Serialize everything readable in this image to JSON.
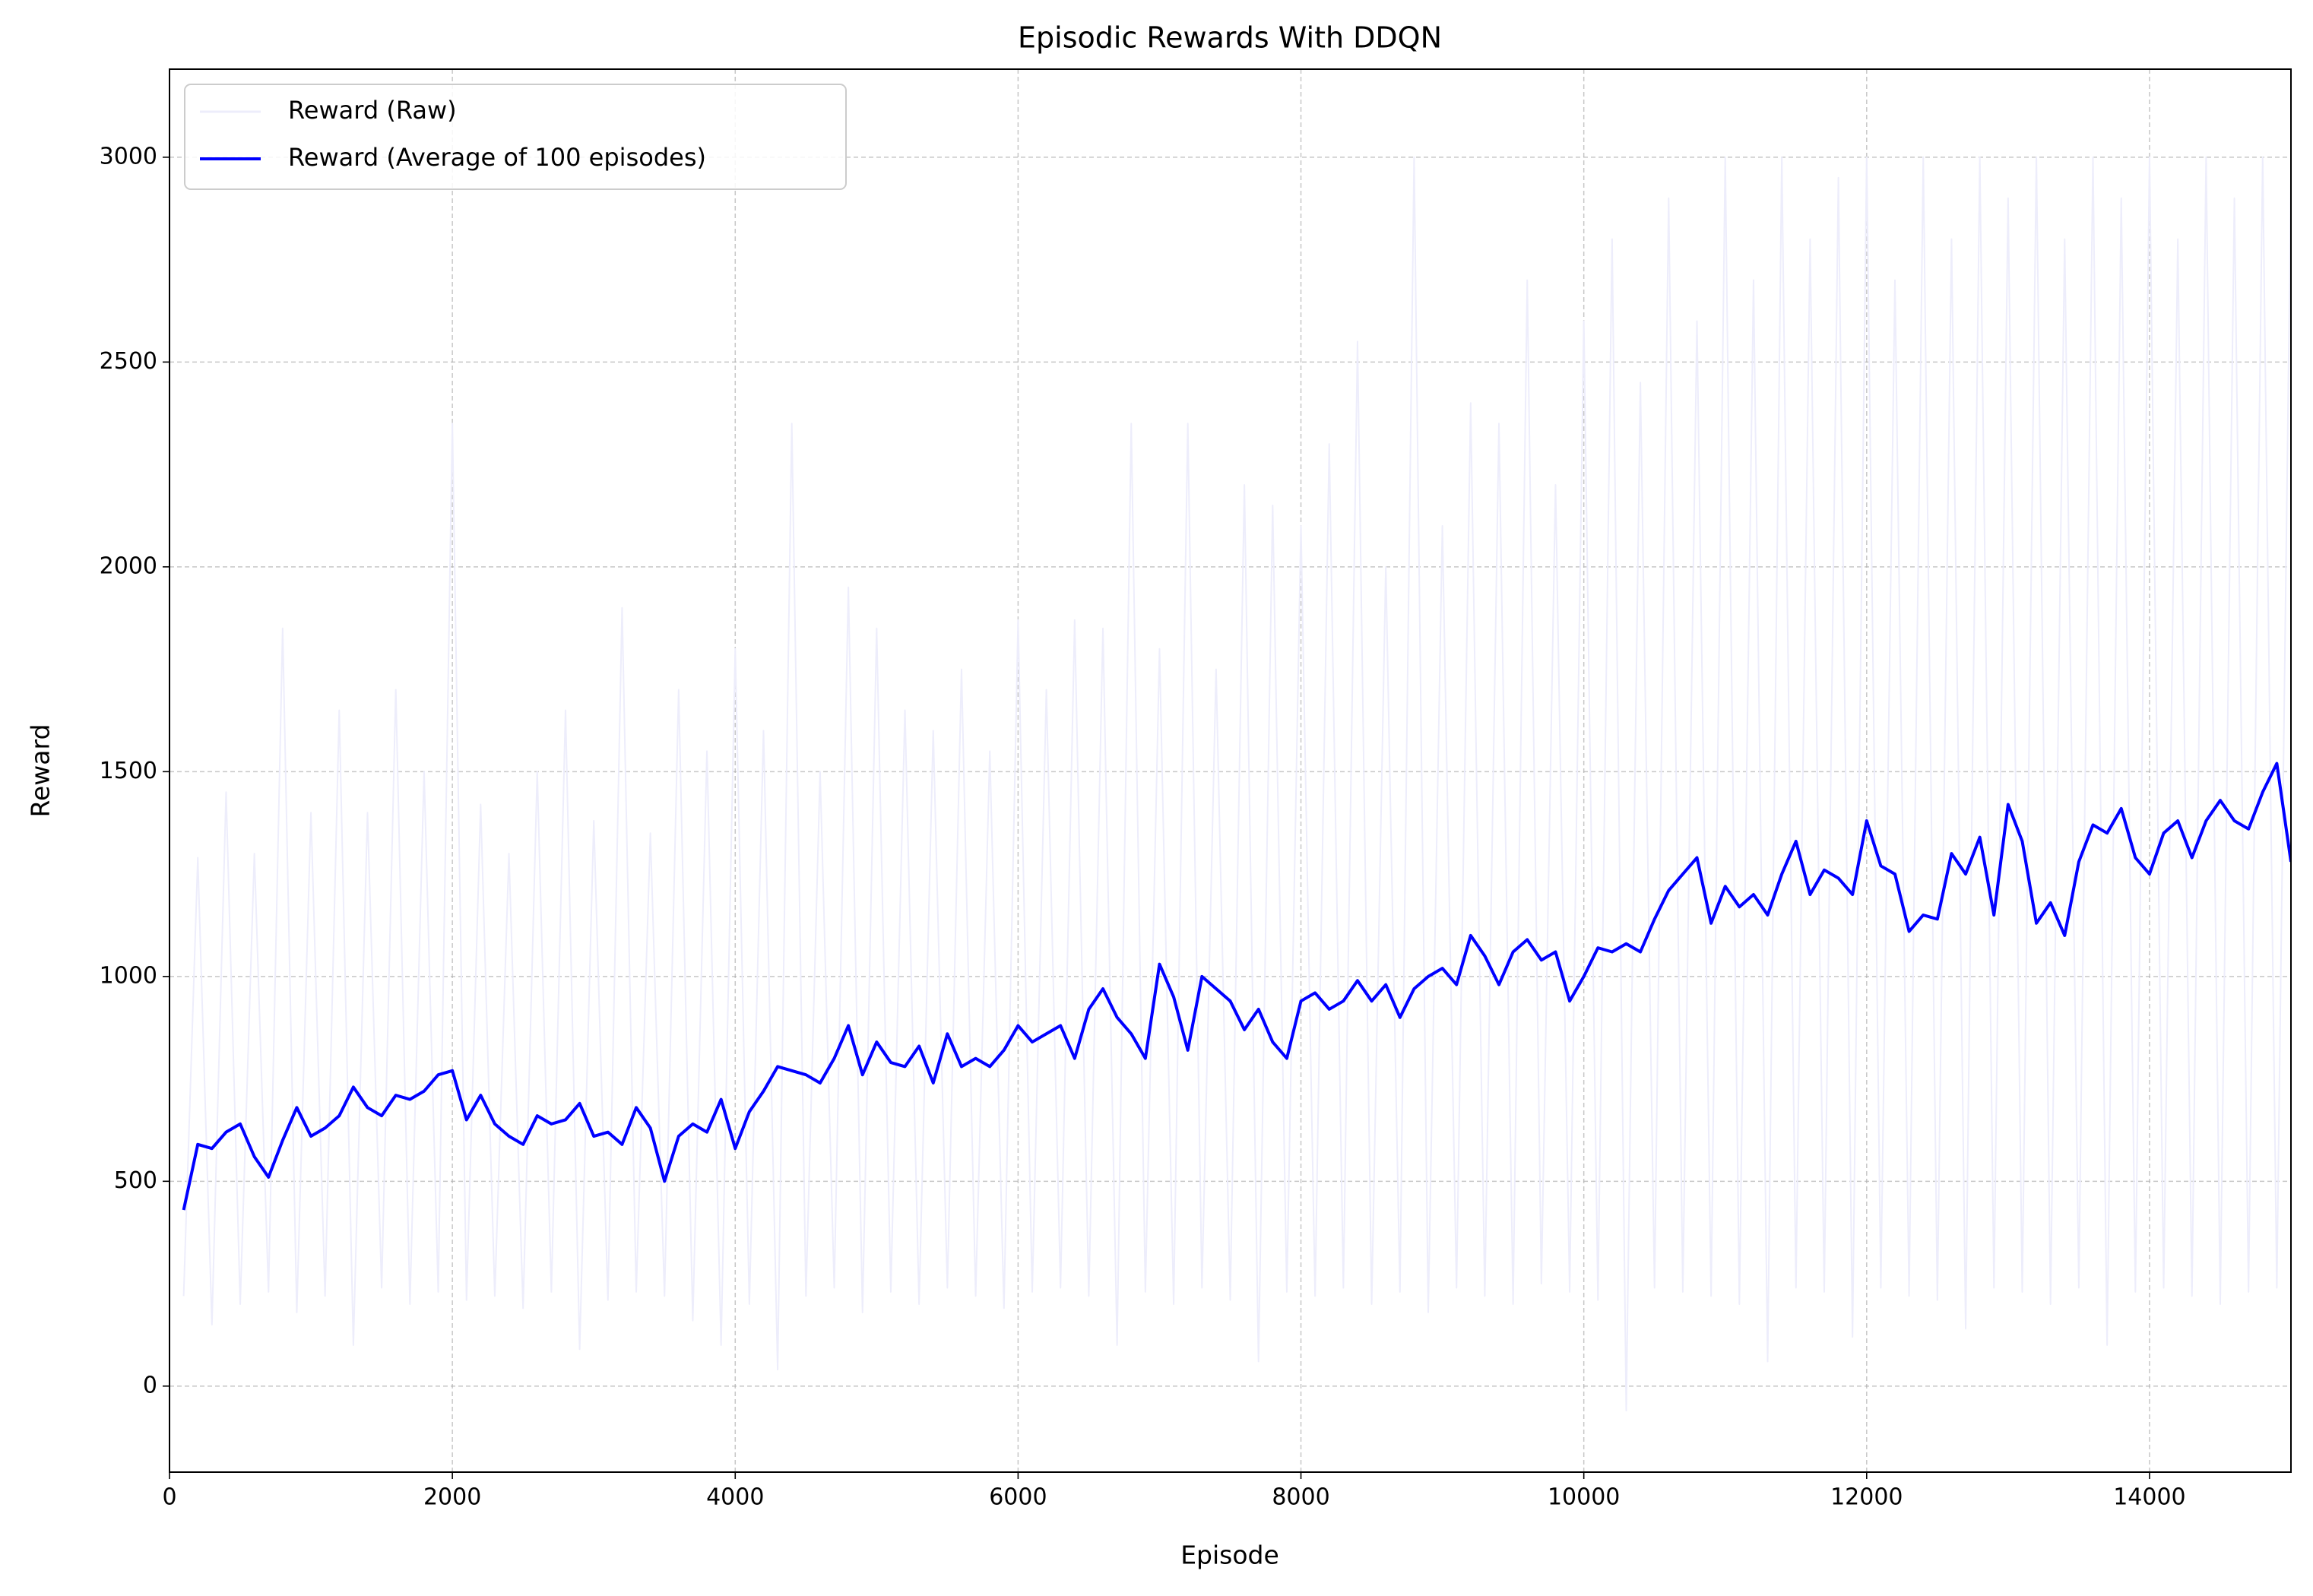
{
  "chart_data": {
    "type": "line",
    "title": "Episodic Rewards With DDQN",
    "xlabel": "Episode",
    "ylabel": "Reward",
    "xlim": [
      0,
      15000
    ],
    "ylim": [
      -210,
      3215
    ],
    "xticks": [
      0,
      2000,
      4000,
      6000,
      8000,
      10000,
      12000,
      14000
    ],
    "yticks": [
      0,
      500,
      1000,
      1500,
      2000,
      2500,
      3000
    ],
    "grid": true,
    "legend": "upper left",
    "x": [
      100,
      200,
      300,
      400,
      500,
      600,
      700,
      800,
      900,
      1000,
      1100,
      1200,
      1300,
      1400,
      1500,
      1600,
      1700,
      1800,
      1900,
      2000,
      2100,
      2200,
      2300,
      2400,
      2500,
      2600,
      2700,
      2800,
      2900,
      3000,
      3100,
      3200,
      3300,
      3400,
      3500,
      3600,
      3700,
      3800,
      3900,
      4000,
      4100,
      4200,
      4300,
      4400,
      4500,
      4600,
      4700,
      4800,
      4900,
      5000,
      5100,
      5200,
      5300,
      5400,
      5500,
      5600,
      5700,
      5800,
      5900,
      6000,
      6100,
      6200,
      6300,
      6400,
      6500,
      6600,
      6700,
      6800,
      6900,
      7000,
      7100,
      7200,
      7300,
      7400,
      7500,
      7600,
      7700,
      7800,
      7900,
      8000,
      8100,
      8200,
      8300,
      8400,
      8500,
      8600,
      8700,
      8800,
      8900,
      9000,
      9100,
      9200,
      9300,
      9400,
      9500,
      9600,
      9700,
      9800,
      9900,
      10000,
      10100,
      10200,
      10300,
      10400,
      10500,
      10600,
      10700,
      10800,
      10900,
      11000,
      11100,
      11200,
      11300,
      11400,
      11500,
      11600,
      11700,
      11800,
      11900,
      12000,
      12100,
      12200,
      12300,
      12400,
      12500,
      12600,
      12700,
      12800,
      12900,
      13000,
      13100,
      13200,
      13300,
      13400,
      13500,
      13600,
      13700,
      13800,
      13900,
      14000,
      14100,
      14200,
      14300,
      14400,
      14500,
      14600,
      14700,
      14800,
      14900,
      15000
    ],
    "series": [
      {
        "name": "Reward (Raw)",
        "color": "#ededfb",
        "values": [
          220,
          1290,
          150,
          1450,
          200,
          1300,
          230,
          1850,
          180,
          1400,
          220,
          1650,
          100,
          1400,
          240,
          1700,
          200,
          1500,
          230,
          2350,
          210,
          1420,
          220,
          1300,
          190,
          1500,
          230,
          1650,
          90,
          1380,
          210,
          1900,
          230,
          1350,
          220,
          1700,
          160,
          1550,
          100,
          1800,
          200,
          1600,
          40,
          2350,
          220,
          1500,
          240,
          1950,
          180,
          1850,
          230,
          1650,
          200,
          1600,
          240,
          1750,
          220,
          1550,
          190,
          1870,
          230,
          1700,
          240,
          1870,
          220,
          1850,
          100,
          2350,
          230,
          1800,
          200,
          2350,
          240,
          1750,
          210,
          2200,
          60,
          2150,
          230,
          2100,
          220,
          2300,
          240,
          2550,
          200,
          2000,
          230,
          3000,
          180,
          2100,
          240,
          2400,
          220,
          2350,
          200,
          2700,
          250,
          2200,
          230,
          2600,
          210,
          2800,
          -60,
          2450,
          240,
          2900,
          230,
          2600,
          220,
          3000,
          200,
          2700,
          60,
          3000,
          240,
          2800,
          230,
          2950,
          120,
          3000,
          240,
          2700,
          220,
          3000,
          210,
          2800,
          140,
          3000,
          240,
          2900,
          230,
          3000,
          200,
          2800,
          240,
          3000,
          100,
          2900,
          230,
          3000,
          240,
          2800,
          220,
          3000,
          200,
          2900,
          230,
          3000,
          240,
          2950
        ]
      },
      {
        "name": "Reward (Average of 100 episodes)",
        "color": "#0000ff",
        "values": [
          430,
          590,
          580,
          620,
          640,
          560,
          510,
          600,
          680,
          610,
          630,
          660,
          730,
          680,
          660,
          710,
          700,
          720,
          760,
          770,
          650,
          710,
          640,
          610,
          590,
          660,
          640,
          650,
          690,
          610,
          620,
          590,
          680,
          630,
          500,
          610,
          640,
          620,
          700,
          580,
          670,
          720,
          780,
          770,
          760,
          740,
          800,
          880,
          760,
          840,
          790,
          780,
          830,
          740,
          860,
          780,
          800,
          780,
          820,
          880,
          840,
          860,
          880,
          800,
          920,
          970,
          900,
          860,
          800,
          1030,
          950,
          820,
          1000,
          970,
          940,
          870,
          920,
          840,
          800,
          940,
          960,
          920,
          940,
          990,
          940,
          980,
          900,
          970,
          1000,
          1020,
          980,
          1100,
          1050,
          980,
          1060,
          1090,
          1040,
          1060,
          940,
          1000,
          1070,
          1060,
          1080,
          1060,
          1140,
          1210,
          1250,
          1290,
          1130,
          1220,
          1170,
          1200,
          1150,
          1250,
          1330,
          1200,
          1260,
          1240,
          1200,
          1380,
          1270,
          1250,
          1110,
          1150,
          1140,
          1300,
          1250,
          1340,
          1150,
          1420,
          1330,
          1130,
          1180,
          1100,
          1280,
          1370,
          1350,
          1410,
          1290,
          1250,
          1350,
          1380,
          1290,
          1380,
          1430,
          1380,
          1360,
          1450,
          1520,
          1280
        ]
      }
    ]
  }
}
